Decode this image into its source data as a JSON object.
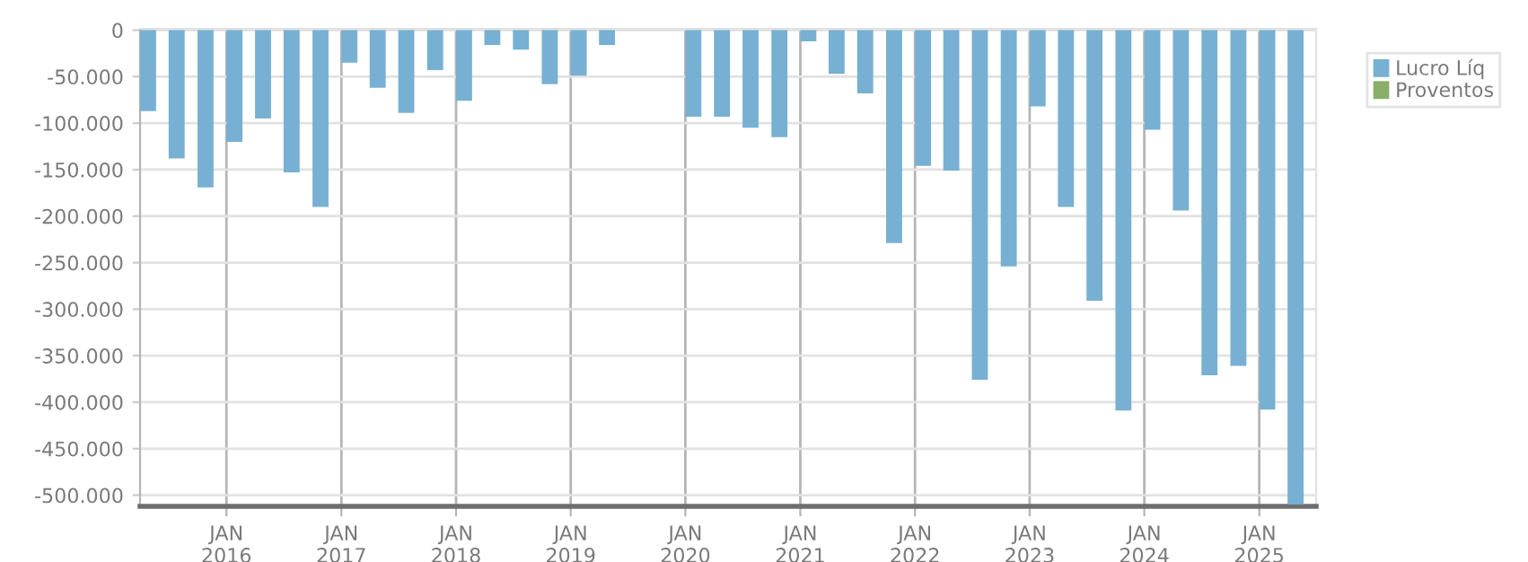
{
  "chart_data": {
    "type": "bar",
    "x": [
      "2015-04",
      "2015-07",
      "2015-10",
      "2016-01",
      "2016-04",
      "2016-07",
      "2016-10",
      "2017-01",
      "2017-04",
      "2017-07",
      "2017-10",
      "2018-01",
      "2018-04",
      "2018-07",
      "2018-10",
      "2019-01",
      "2019-04",
      "2019-07",
      "2019-10",
      "2020-01",
      "2020-04",
      "2020-07",
      "2020-10",
      "2021-01",
      "2021-04",
      "2021-07",
      "2021-10",
      "2022-01",
      "2022-04",
      "2022-07",
      "2022-10",
      "2023-01",
      "2023-04",
      "2023-07",
      "2023-10",
      "2024-01",
      "2024-04",
      "2024-07",
      "2024-10",
      "2025-01",
      "2025-04"
    ],
    "series": [
      {
        "name": "Lucro Líq",
        "color": "#77b0d2",
        "values": [
          -87000,
          -138000,
          -169000,
          -120000,
          -95000,
          -153000,
          -190000,
          -35000,
          -62000,
          -89000,
          -43000,
          -76000,
          -16000,
          -21000,
          -58000,
          -49000,
          -16000,
          null,
          null,
          -93000,
          -93000,
          -105000,
          -115000,
          -12000,
          -47000,
          -68000,
          -229000,
          -146000,
          -151000,
          -376000,
          -254000,
          -82000,
          -190000,
          -291000,
          -409000,
          -107000,
          -194000,
          -371000,
          -361000,
          -408000,
          -510000
        ]
      },
      {
        "name": "Proventos",
        "color": "#8aae6a",
        "values": [
          null,
          null,
          null,
          null,
          null,
          null,
          null,
          null,
          null,
          null,
          null,
          null,
          null,
          null,
          null,
          null,
          null,
          null,
          null,
          null,
          null,
          null,
          null,
          null,
          null,
          null,
          null,
          null,
          null,
          null,
          null,
          null,
          null,
          null,
          null,
          null,
          null,
          null,
          null,
          null,
          null
        ]
      }
    ],
    "xlim": [
      "2015-04",
      "2025-07"
    ],
    "xticks": [
      {
        "value": "2016-01",
        "label": "JAN\n2016"
      },
      {
        "value": "2017-01",
        "label": "JAN\n2017"
      },
      {
        "value": "2018-01",
        "label": "JAN\n2018"
      },
      {
        "value": "2019-01",
        "label": "JAN\n2019"
      },
      {
        "value": "2020-01",
        "label": "JAN\n2020"
      },
      {
        "value": "2021-01",
        "label": "JAN\n2021"
      },
      {
        "value": "2022-01",
        "label": "JAN\n2022"
      },
      {
        "value": "2023-01",
        "label": "JAN\n2023"
      },
      {
        "value": "2024-01",
        "label": "JAN\n2024"
      },
      {
        "value": "2025-01",
        "label": "JAN\n2025"
      }
    ],
    "ylim": [
      -512000,
      1500
    ],
    "yticks": [
      0,
      {
        "value": -50000,
        "label": "-50.000"
      },
      {
        "value": -100000,
        "label": "-100.000"
      },
      {
        "value": -150000,
        "label": "-150.000"
      },
      {
        "value": -200000,
        "label": "-200.000"
      },
      {
        "value": -250000,
        "label": "-250.000"
      },
      {
        "value": -300000,
        "label": "-300.000"
      },
      {
        "value": -350000,
        "label": "-350.000"
      },
      {
        "value": -400000,
        "label": "-400.000"
      },
      {
        "value": -450000,
        "label": "-450.000"
      },
      {
        "value": -500000,
        "label": "-500.000"
      }
    ],
    "grid": true,
    "legend": "top right"
  }
}
